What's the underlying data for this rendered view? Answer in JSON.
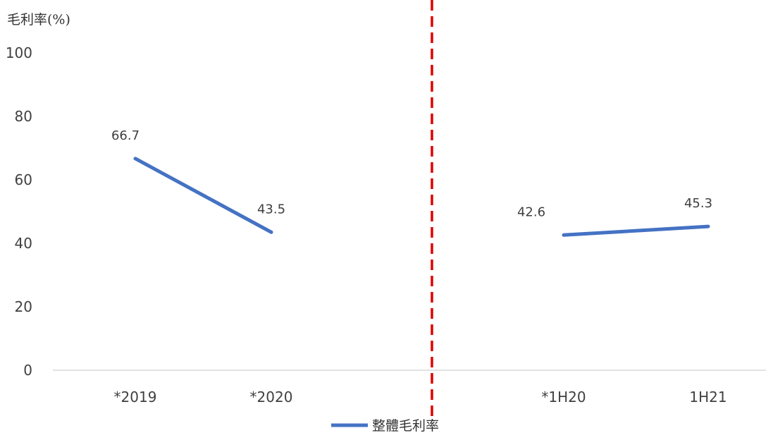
{
  "chart_data": {
    "type": "line",
    "ylabel": "毛利率(%)",
    "xlabel": "",
    "ylim": [
      0,
      100
    ],
    "yticks": [
      0,
      20,
      40,
      60,
      80,
      100
    ],
    "grid": false,
    "legend_position": "bottom",
    "categories": [
      "*2019",
      "*2020",
      "*1H20",
      "1H21"
    ],
    "divider_between_categories": [
      "*2020",
      "*1H20"
    ],
    "segments": [
      {
        "from": "*2019",
        "to": "*2020"
      },
      {
        "from": "*1H20",
        "to": "1H21"
      }
    ],
    "series": [
      {
        "name": "整體毛利率",
        "color": "#4472c4",
        "values": [
          66.7,
          43.5,
          42.6,
          45.3
        ],
        "value_labels": [
          "66.7",
          "43.5",
          "42.6",
          "45.3"
        ]
      }
    ],
    "divider_color": "#e00000",
    "axis_color": "#d9d9d9"
  }
}
